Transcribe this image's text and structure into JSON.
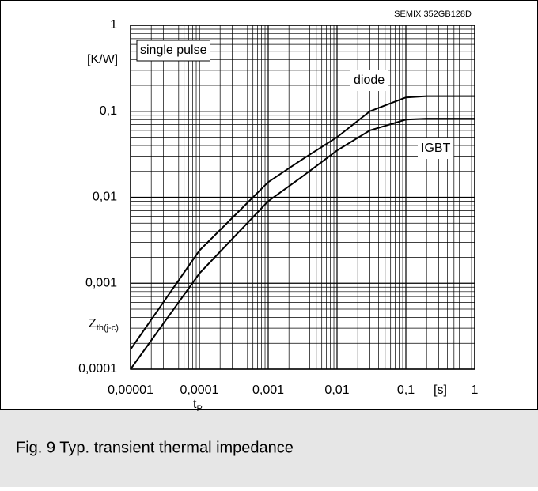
{
  "chart_data": {
    "type": "line",
    "title": "SEMIX 352GB128D",
    "caption": "Fig. 9 Typ. transient thermal impedance",
    "annotation": "single pulse",
    "y_unit": "[K/W]",
    "y_label": {
      "main": "Z",
      "sub": "th(j-c)"
    },
    "x_label": {
      "main": "t",
      "sub": "P"
    },
    "x_unit": "[s]",
    "log_x": true,
    "log_y": true,
    "grid": true,
    "x": [
      1e-05,
      0.0001,
      0.001,
      0.003,
      0.01,
      0.03,
      0.1,
      0.2,
      1
    ],
    "series": [
      {
        "name": "diode",
        "color": "#000000",
        "values": [
          0.00017,
          0.0024,
          0.015,
          0.027,
          0.05,
          0.1,
          0.145,
          0.15,
          0.15
        ]
      },
      {
        "name": "IGBT",
        "color": "#000000",
        "values": [
          0.0001,
          0.0013,
          0.009,
          0.017,
          0.035,
          0.06,
          0.08,
          0.082,
          0.082
        ]
      }
    ],
    "xlim": [
      1e-05,
      1
    ],
    "xticks": [
      {
        "value": 1e-05,
        "label": "0,00001"
      },
      {
        "value": 0.0001,
        "label": "0,0001"
      },
      {
        "value": 0.001,
        "label": "0,001"
      },
      {
        "value": 0.01,
        "label": "0,01"
      },
      {
        "value": 0.1,
        "label": "0,1"
      },
      1
    ],
    "ylim": [
      0.0001,
      1
    ],
    "yticks": [
      {
        "value": 0.0001,
        "label": "0,0001"
      },
      {
        "value": 0.001,
        "label": "0,001"
      },
      {
        "value": 0.01,
        "label": "0,01"
      },
      {
        "value": 0.1,
        "label": "0,1"
      },
      1
    ]
  }
}
